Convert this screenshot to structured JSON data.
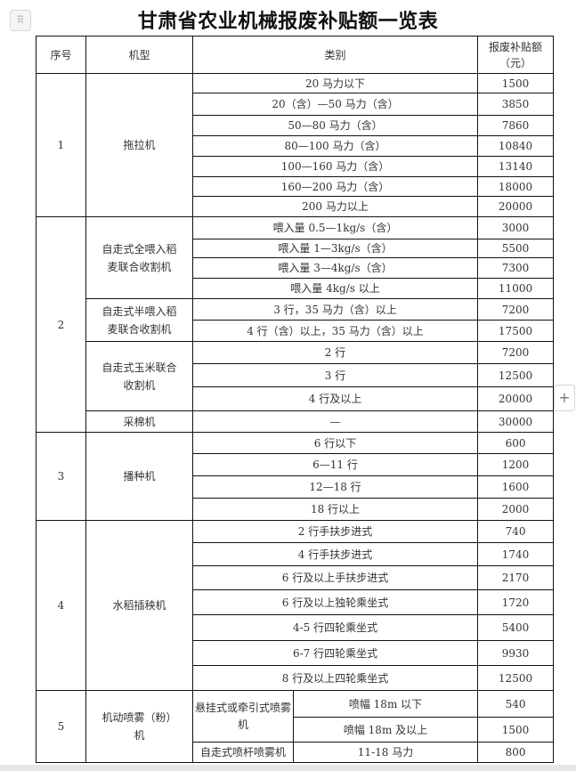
{
  "page": {
    "title": "甘肃省农业机械报废补贴额一览表",
    "drag_icon": "⠿",
    "add_icon": "+"
  },
  "table": {
    "headers": [
      "序号",
      "机型",
      "类别",
      "报废补贴额（元）"
    ],
    "groups": [
      {
        "no": "1",
        "machines": [
          {
            "name": "拖拉机",
            "rows": [
              {
                "category": "20 马力以下",
                "subsidy": "1500"
              },
              {
                "category": "20（含）—50 马力（含）",
                "subsidy": "3850"
              },
              {
                "category": "50—80 马力（含）",
                "subsidy": "7860"
              },
              {
                "category": "80—100 马力（含）",
                "subsidy": "10840"
              },
              {
                "category": "100—160 马力（含）",
                "subsidy": "13140"
              },
              {
                "category": "160—200 马力（含）",
                "subsidy": "18000"
              },
              {
                "category": "200 马力以上",
                "subsidy": "20000"
              }
            ]
          }
        ]
      },
      {
        "no": "2",
        "machines": [
          {
            "name": "自走式全喂入稻麦联合收割机",
            "rows": [
              {
                "category": "喂入量 0.5—1kg/s（含）",
                "subsidy": "3000"
              },
              {
                "category": "喂入量 1—3kg/s（含）",
                "subsidy": "5500"
              },
              {
                "category": "喂入量 3—4kg/s（含）",
                "subsidy": "7300"
              },
              {
                "category": "喂入量 4kg/s 以上",
                "subsidy": "11000"
              }
            ]
          },
          {
            "name": "自走式半喂入稻麦联合收割机",
            "rows": [
              {
                "category": "3 行，35 马力（含）以上",
                "subsidy": "7200"
              },
              {
                "category": "4 行（含）以上，35 马力（含）以上",
                "subsidy": "17500"
              }
            ]
          },
          {
            "name": "自走式玉米联合收割机",
            "rows": [
              {
                "category": "2 行",
                "subsidy": "7200"
              },
              {
                "category": "3 行",
                "subsidy": "12500"
              },
              {
                "category": "4 行及以上",
                "subsidy": "20000"
              }
            ]
          },
          {
            "name": "采棉机",
            "rows": [
              {
                "category": "—",
                "subsidy": "30000"
              }
            ]
          }
        ]
      },
      {
        "no": "3",
        "machines": [
          {
            "name": "播种机",
            "rows": [
              {
                "category": "6 行以下",
                "subsidy": "600"
              },
              {
                "category": "6—11 行",
                "subsidy": "1200"
              },
              {
                "category": "12—18 行",
                "subsidy": "1600"
              },
              {
                "category": "18 行以上",
                "subsidy": "2000"
              }
            ]
          }
        ]
      },
      {
        "no": "4",
        "machines": [
          {
            "name": "水稻插秧机",
            "rows": [
              {
                "category": "2 行手扶步进式",
                "subsidy": "740"
              },
              {
                "category": "4 行手扶步进式",
                "subsidy": "1740"
              },
              {
                "category": "6 行及以上手扶步进式",
                "subsidy": "2170"
              },
              {
                "category": "6 行及以上独轮乘坐式",
                "subsidy": "1720"
              },
              {
                "category": "4-5 行四轮乘坐式",
                "subsidy": "5400"
              },
              {
                "category": "6-7 行四轮乘坐式",
                "subsidy": "9930"
              },
              {
                "category": "8 行及以上四轮乘坐式",
                "subsidy": "12500"
              }
            ]
          }
        ]
      },
      {
        "no": "5",
        "machines": [
          {
            "name": "机动喷雾（粉）机",
            "rows": [
              {
                "type": "悬挂式或牵引式喷雾机",
                "type_span": 2,
                "category": "喷幅 18m 以下",
                "subsidy": "540"
              },
              {
                "category": "喷幅 18m 及以上",
                "subsidy": "1500"
              },
              {
                "type": "自走式喷杆喷雾机",
                "type_span": 1,
                "category": "11-18 马力",
                "subsidy": "800"
              }
            ]
          }
        ]
      }
    ]
  }
}
